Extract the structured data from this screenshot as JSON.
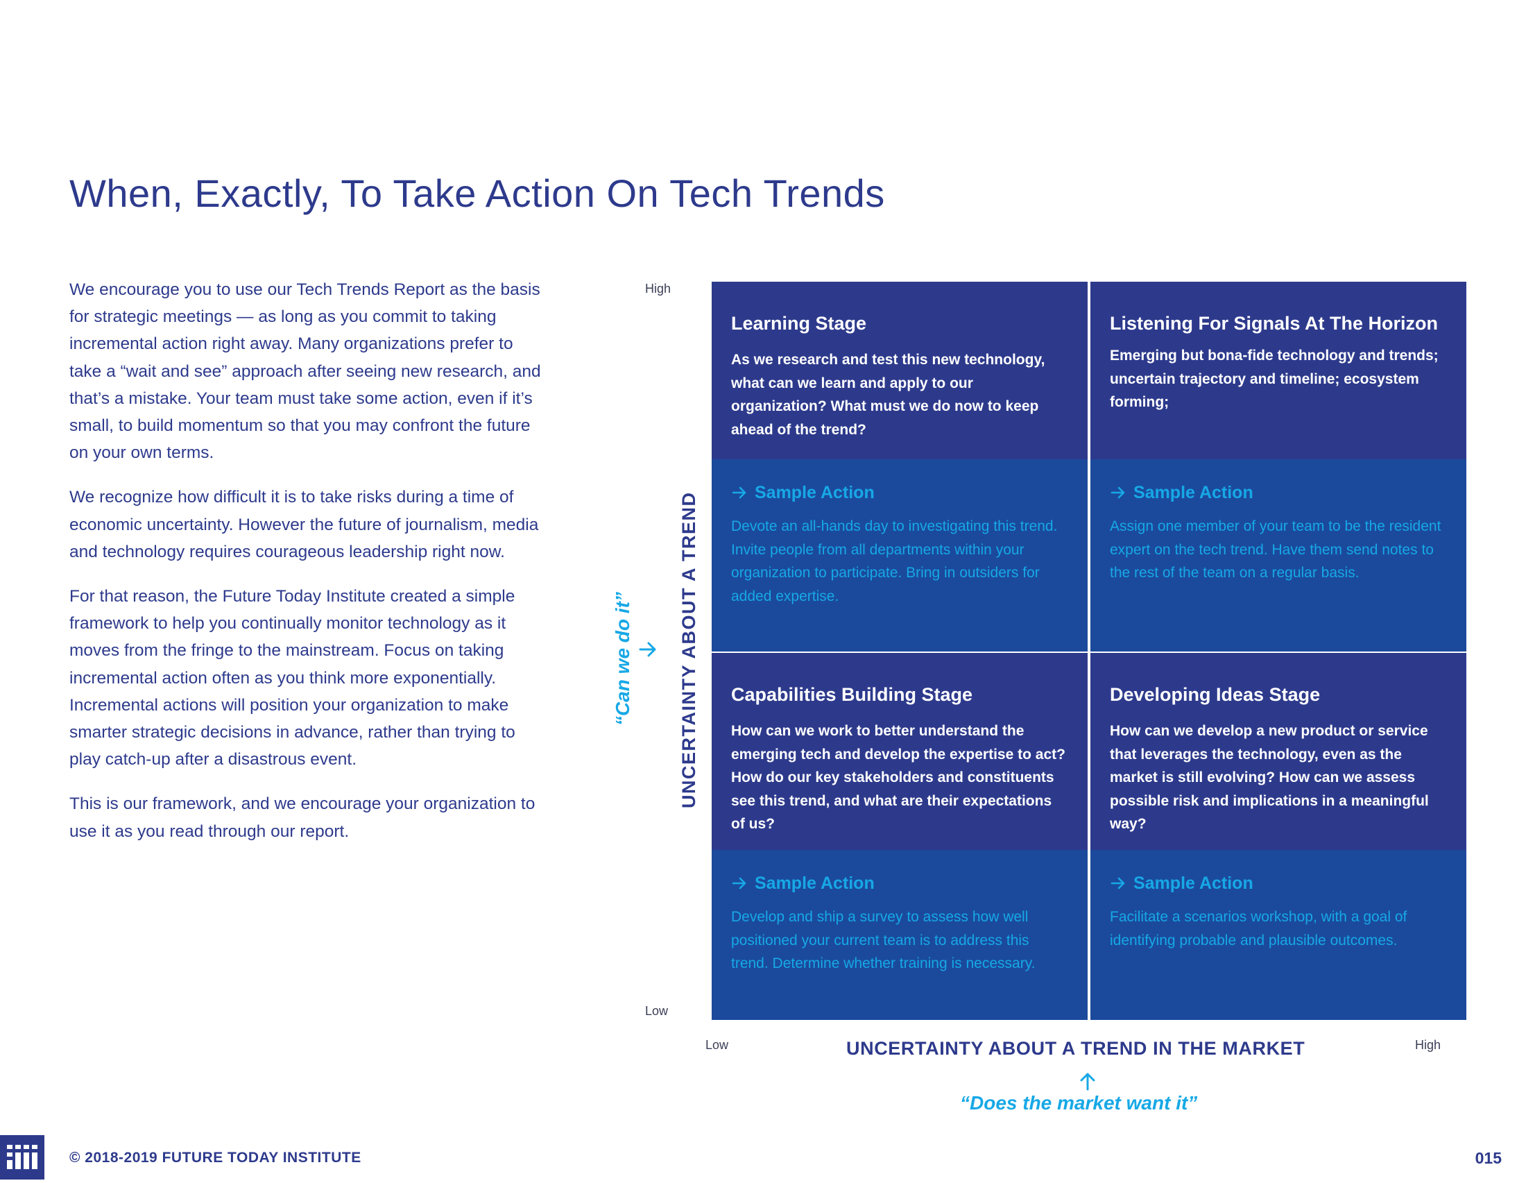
{
  "title": "When, Exactly, To Take Action On Tech Trends",
  "intro": {
    "p1": "We encourage you to use our Tech Trends Report as the basis for strategic meetings — as long as you commit to taking incremental action right away. Many organizations prefer to take a “wait and see” approach after seeing new research, and that’s a mistake. Your team must take some action, even if it’s small, to build momentum so that you may confront the future on your own terms.",
    "p2": "We recognize how difficult it is to take risks during a time of economic uncertainty. However the future of journalism, media and technology requires courageous leadership right now.",
    "p3": "For that reason, the Future Today Institute created a simple framework to help you continually monitor technology as it moves from the fringe to the mainstream. Focus on taking incremental action often as you think more exponentially. Incremental actions will position your organization to make smarter strategic decisions in advance, rather than trying to play catch-up after a disastrous event.",
    "p4": "This is our framework, and we encourage your organization to use it as you read through our report."
  },
  "matrix": {
    "y_axis": {
      "label": "UNCERTAINTY ABOUT A TREND",
      "quote": "“Can we do it”",
      "high": "High",
      "low": "Low"
    },
    "x_axis": {
      "label": "UNCERTAINTY ABOUT A TREND IN THE MARKET",
      "quote": "“Does the market want it”",
      "low": "Low",
      "high": "High"
    },
    "sample_action_label": "Sample Action",
    "quadrants": {
      "top_left": {
        "title": "Learning Stage",
        "description": "As we research and test this new technology, what can we learn and apply to our organization? What must we do now to keep ahead of the trend?",
        "action": "Devote an all-hands day to investigating this trend. Invite people from all departments within your organization to participate. Bring in outsiders for added expertise."
      },
      "top_right": {
        "title": "Listening For Signals At The Horizon",
        "description": "Emerging but bona-fide technology and trends; uncertain trajectory and timeline; ecosystem forming;",
        "action": "Assign one member of your team to be the resident expert on the tech trend. Have them send notes to the rest of the team on a regular basis."
      },
      "bottom_left": {
        "title": "Capabilities Building Stage",
        "description": "How can we work to better understand the emerging tech and develop the expertise to act? How do our key stakeholders and constituents see this trend, and what are their expectations of us?",
        "action": "Develop and ship a survey to assess how well positioned your current team is to address this trend. Determine whether training is necessary."
      },
      "bottom_right": {
        "title": "Developing Ideas Stage",
        "description": "How can we develop a new product or service that leverages the technology, even as the market is still evolving? How can we assess possible risk and implications in a meaningful way?",
        "action": "Facilitate a scenarios workshop, with a goal of identifying probable and plausible outcomes."
      }
    }
  },
  "footer": {
    "copyright": "© 2018-2019 FUTURE TODAY INSTITUTE",
    "page_number": "015"
  },
  "colors": {
    "navy": "#2d3a8c",
    "royal": "#1b4a9c",
    "cyan": "#17a8e6"
  }
}
